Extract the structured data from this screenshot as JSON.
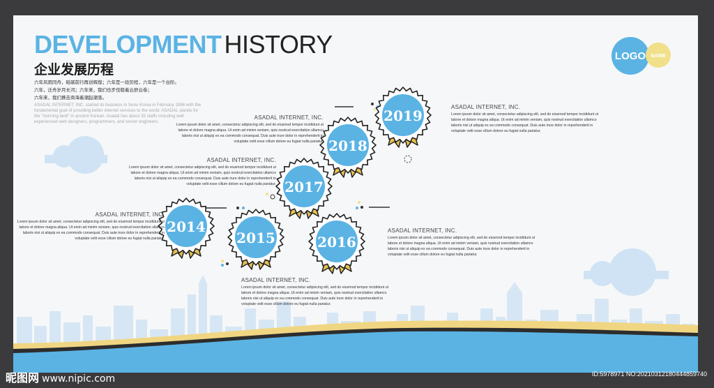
{
  "header": {
    "title_accent": "DEVELOPMENT",
    "title_rest": "HISTORY",
    "subtitle_cn": "企业发展历程",
    "intro_cn": [
      "六年风雨同舟，砥砺前行再创辉煌；六年是一段历程，六年是一个台阶。",
      "六年，迁舟岁月长河；六年来，我们也步伐稳着云舒云卷；",
      "六年来，我们携击商海着潮起潮落。"
    ],
    "intro_en": "ASADAL INTERNET, INC. started its business in Seou Korea in February 1998 with the fundamental goal of providing better internet services to the world. ASADAL stands for the \"morning land\" in ancient Korean. Asadal has about 35 staffs including well experienced web designers, programmers, and server engineers."
  },
  "logo": {
    "text": "LOGO",
    "name": "NAME"
  },
  "timeline": [
    {
      "year": "2014",
      "company": "ASADAL INTERNET, INC.",
      "text": "Lorem ipsum dolor sit amet, consectetur adipiscing elit, sed do eiusmod tempor incididunt ut labore et dolore magna aliqua. Ut enim ad minim veniam, quis nostrud exercitation ullamco laboris nisi ut aliquip ex ea commodo consequat. Duis aute irure dolor in reprehenderit in voluptate velit esse cillum dolore eu fugiat nulla pariatur."
    },
    {
      "year": "2015",
      "company": "ASADAL INTERNET, INC.",
      "text": "Lorem ipsum dolor sit amet, consectetur adipiscing elit, sed do eiusmod tempor incididunt ut labore et dolore magna aliqua. Ut enim ad minim veniam, quis nostrud exercitation ullamco laboris nisi ut aliquip ex ea commodo consequat. Duis aute irure dolor in reprehenderit in voluptate velit esse cillum dolore eu fugiat nulla pariatur."
    },
    {
      "year": "2016",
      "company": "ASADAL INTERNET, INC.",
      "text": "Lorem ipsum dolor sit amet, consectetur adipiscing elit, sed do eiusmod tempor incididunt ut labore et dolore magna aliqua. Ut enim ad minim veniam, quis nostrud exercitation ullamco laboris nisi ut aliquip ex ea commodo consequat. Duis aute irure dolor in reprehenderit in voluptate velit esse cillum dolore eu fugiat nulla pariatur."
    },
    {
      "year": "2017",
      "company": "ASADAL INTERNET, INC.",
      "text": "Lorem ipsum dolor sit amet, consectetur adipiscing elit, sed do eiusmod tempor incididunt ut labore et dolore magna aliqua. Ut enim ad minim veniam, quis nostrud exercitation ullamco laboris nisi ut aliquip ex ea commodo consequat. Duis aute irure dolor in reprehenderit in voluptate velit esse cillum dolore eu fugiat nulla pariatur."
    },
    {
      "year": "2018",
      "company": "ASADAL INTERNET, INC.",
      "text": "Lorem ipsum dolor sit amet, consectetur adipiscing elit, sed do eiusmod tempor incididunt ut labore et dolore magna aliqua. Ut enim ad minim veniam, quis nostrud exercitation ullamco laboris nisi ut aliquip ex ea commodo consequat. Duis aute irure dolor in reprehenderit in voluptate velit esse cillum dolore eu fugiat nulla pariatur."
    },
    {
      "year": "2019",
      "company": "ASADAL INTERNET, INC.",
      "text": "Lorem ipsum dolor sit amet, consectetur adipiscing elit, sed do eiusmod tempor incididunt ut labore et dolore magna aliqua. Ut enim ad minim veniam, quis nostrud exercitation ullamco laboris nisi ut aliquip ex ea commodo consequat. Duis aute irure dolor in reprehenderit in voluptate velit esse cillum dolore eu fugiat nulla pariatur."
    }
  ],
  "watermark": {
    "brand": "昵图网",
    "url": "www.nipic.com",
    "id_text": "ID:5978971 NO:20210312180444859740"
  },
  "colors": {
    "accent_blue": "#5bb3e4",
    "accent_yellow": "#f1e08a",
    "ribbon_gold": "#e6c04f",
    "frame_dark": "#3b3b3d",
    "skyline": "#cfe3f4"
  },
  "icons": [
    "logo-circle",
    "medal-badge",
    "ribbon",
    "cloud",
    "city-skyline",
    "wave"
  ]
}
